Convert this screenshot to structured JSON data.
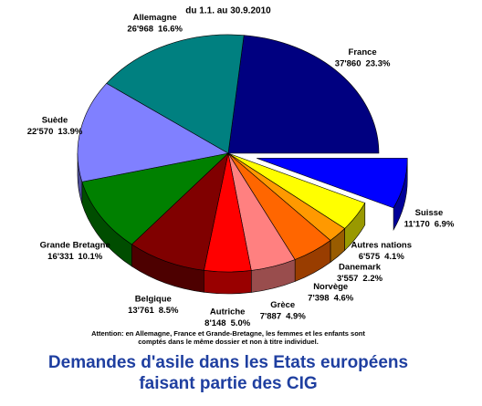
{
  "chart_data": {
    "type": "pie3d",
    "subtitle": "du 1.1. au 30.9.2010",
    "categories": [
      "France",
      "Suisse",
      "Autres nations",
      "Danemark",
      "Norvège",
      "Grèce",
      "Autriche",
      "Belgique",
      "Grande Bretagne",
      "Suède",
      "Allemagne"
    ],
    "values": [
      37860,
      11170,
      6575,
      3557,
      7398,
      7887,
      8148,
      13761,
      16331,
      22570,
      26968
    ],
    "value_labels": [
      "37'860",
      "11'170",
      "6'575",
      "3'557",
      "7'398",
      "7'887",
      "8'148",
      "13'761",
      "16'331",
      "22'570",
      "26'968"
    ],
    "percentages": [
      23.3,
      6.9,
      4.1,
      2.2,
      4.6,
      4.9,
      5.0,
      8.5,
      10.1,
      13.9,
      16.6
    ],
    "percentage_labels": [
      "23.3%",
      "6.9%",
      "4.1%",
      "2.2%",
      "4.6%",
      "4.9%",
      "5.0%",
      "8.5%",
      "10.1%",
      "13.9%",
      "16.6%"
    ],
    "colors": [
      "#000080",
      "#0000ff",
      "#ffff00",
      "#ff9900",
      "#ff6600",
      "#ff8080",
      "#ff0000",
      "#800000",
      "#008000",
      "#8080ff",
      "#008080"
    ],
    "exploded": [
      "Suisse"
    ],
    "note": [
      "Attention: en Allemagne, France et Grande-Bretagne, les femmes et les enfants sont",
      "comptés dans le même dossier et non à titre individuel."
    ],
    "title": [
      "Demandes d'asile dans les Etats européens",
      "faisant partie des CIG"
    ]
  }
}
